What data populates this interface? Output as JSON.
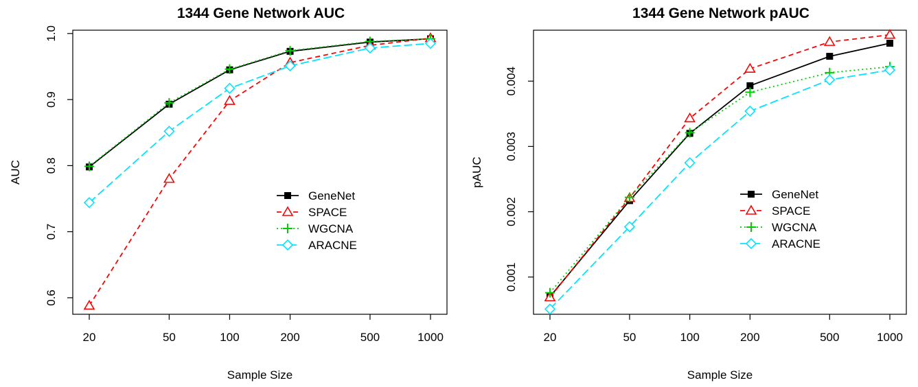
{
  "figure": {
    "panel_count": 2
  },
  "chart_data": [
    {
      "type": "line",
      "title": "1344 Gene Network AUC",
      "xlabel": "Sample Size",
      "ylabel": "AUC",
      "xscale": "log",
      "x": [
        20,
        50,
        100,
        200,
        500,
        1000
      ],
      "xticks": [
        "20",
        "50",
        "100",
        "200",
        "500",
        "1000"
      ],
      "ylim": [
        0.575,
        1.005
      ],
      "yticks": [
        "0.6",
        "0.7",
        "0.8",
        "0.9",
        "1.0"
      ],
      "ytick_values": [
        0.6,
        0.7,
        0.8,
        0.9,
        1.0
      ],
      "grid": false,
      "legend": "right",
      "series": [
        {
          "name": "GeneNet",
          "color": "#000000",
          "dash": "",
          "marker": "square",
          "values": [
            0.798,
            0.893,
            0.945,
            0.973,
            0.987,
            0.992
          ]
        },
        {
          "name": "SPACE",
          "color": "#ff0000",
          "dash": "7,5",
          "marker": "triangle",
          "values": [
            0.588,
            0.78,
            0.898,
            0.956,
            0.982,
            0.993
          ]
        },
        {
          "name": "WGCNA",
          "color": "#00cc00",
          "dash": "2,4",
          "marker": "plus",
          "values": [
            0.799,
            0.895,
            0.946,
            0.974,
            0.988,
            0.992
          ]
        },
        {
          "name": "ARACNE",
          "color": "#00e5ff",
          "dash": "12,5",
          "marker": "diamond",
          "values": [
            0.744,
            0.852,
            0.917,
            0.951,
            0.978,
            0.985
          ]
        }
      ]
    },
    {
      "type": "line",
      "title": "1344 Gene Network pAUC",
      "xlabel": "Sample Size",
      "ylabel": "pAUC",
      "xscale": "log",
      "x": [
        20,
        50,
        100,
        200,
        500,
        1000
      ],
      "xticks": [
        "20",
        "50",
        "100",
        "200",
        "500",
        "1000"
      ],
      "ylim": [
        0.00043,
        0.00478
      ],
      "yticks": [
        "0.001",
        "0.002",
        "0.003",
        "0.004"
      ],
      "ytick_values": [
        0.001,
        0.002,
        0.003,
        0.004
      ],
      "grid": false,
      "legend": "right",
      "series": [
        {
          "name": "GeneNet",
          "color": "#000000",
          "dash": "",
          "marker": "square",
          "values": [
            0.0007,
            0.00217,
            0.0032,
            0.00393,
            0.00438,
            0.00458
          ]
        },
        {
          "name": "SPACE",
          "color": "#ff0000",
          "dash": "7,5",
          "marker": "triangle",
          "values": [
            0.00069,
            0.00221,
            0.00343,
            0.00419,
            0.0046,
            0.00471
          ]
        },
        {
          "name": "WGCNA",
          "color": "#00cc00",
          "dash": "2,4",
          "marker": "plus",
          "values": [
            0.00076,
            0.00222,
            0.00321,
            0.00383,
            0.00413,
            0.00422
          ]
        },
        {
          "name": "ARACNE",
          "color": "#00e5ff",
          "dash": "12,5",
          "marker": "diamond",
          "values": [
            0.00051,
            0.00177,
            0.00275,
            0.00354,
            0.00402,
            0.00417
          ]
        }
      ]
    }
  ]
}
